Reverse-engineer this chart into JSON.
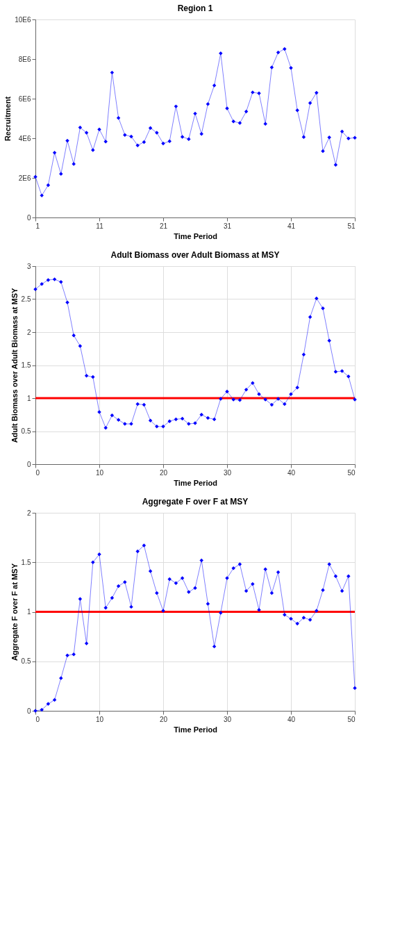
{
  "chart_data": [
    {
      "type": "line",
      "title": "Region 1",
      "xlabel": "Time Period",
      "ylabel": "Recruitment",
      "x": [
        1,
        2,
        3,
        4,
        5,
        6,
        7,
        8,
        9,
        10,
        11,
        12,
        13,
        14,
        15,
        16,
        17,
        18,
        19,
        20,
        21,
        22,
        23,
        24,
        25,
        26,
        27,
        28,
        29,
        30,
        31,
        32,
        33,
        34,
        35,
        36,
        37,
        38,
        39,
        40,
        41,
        42,
        43,
        44,
        45,
        46,
        47,
        48,
        49,
        50,
        51
      ],
      "series": [
        {
          "color": "#0000ff",
          "values": [
            2050000,
            1110000,
            1630000,
            3270000,
            2200000,
            3880000,
            2700000,
            4540000,
            4280000,
            3400000,
            4450000,
            3830000,
            7320000,
            5030000,
            4170000,
            4090000,
            3640000,
            3810000,
            4520000,
            4280000,
            3740000,
            3850000,
            5610000,
            4070000,
            3960000,
            5250000,
            4220000,
            5730000,
            6670000,
            8290000,
            5510000,
            4850000,
            4770000,
            5350000,
            6320000,
            6270000,
            4730000,
            7580000,
            8330000,
            8510000,
            7550000,
            5410000,
            4060000,
            5780000,
            6300000,
            3350000,
            4040000,
            2660000,
            4340000,
            3990000,
            4030000
          ]
        }
      ],
      "xlim": [
        1,
        51
      ],
      "xticks": [
        1,
        11,
        21,
        31,
        41,
        51
      ],
      "ylim": [
        0,
        10000000
      ],
      "yticks": [
        0,
        {
          "value": 2000000,
          "label": "2E6"
        },
        {
          "value": 4000000,
          "label": "4E6"
        },
        {
          "value": 6000000,
          "label": "6E6"
        },
        {
          "value": 8000000,
          "label": "8E6"
        },
        {
          "value": 10000000,
          "label": "10E6"
        }
      ],
      "grid": false,
      "marker": "diamond",
      "line_style": "solid"
    },
    {
      "type": "line",
      "title": "Adult Biomass over Adult Biomass at MSY",
      "xlabel": "Time Period",
      "ylabel": "Adult Biomass over Adult Biomass at MSY",
      "x": [
        0,
        1,
        2,
        3,
        4,
        5,
        6,
        7,
        8,
        9,
        10,
        11,
        12,
        13,
        14,
        15,
        16,
        17,
        18,
        19,
        20,
        21,
        22,
        23,
        24,
        25,
        26,
        27,
        28,
        29,
        30,
        31,
        32,
        33,
        34,
        35,
        36,
        37,
        38,
        39,
        40,
        41,
        42,
        43,
        44,
        45,
        46,
        47,
        48,
        49,
        50
      ],
      "series": [
        {
          "color": "#0000ff",
          "values": [
            2.65,
            2.73,
            2.79,
            2.8,
            2.76,
            2.45,
            1.95,
            1.79,
            1.34,
            1.32,
            0.79,
            0.55,
            0.74,
            0.67,
            0.61,
            0.61,
            0.91,
            0.9,
            0.66,
            0.57,
            0.57,
            0.65,
            0.68,
            0.69,
            0.61,
            0.62,
            0.75,
            0.7,
            0.68,
            0.99,
            1.1,
            0.98,
            0.97,
            1.13,
            1.23,
            1.06,
            0.98,
            0.9,
            0.99,
            0.91,
            1.06,
            1.16,
            1.66,
            2.23,
            2.51,
            2.36,
            1.87,
            1.4,
            1.41,
            1.33,
            0.98
          ]
        }
      ],
      "xlim": [
        0,
        50
      ],
      "xticks": [
        0,
        10,
        20,
        30,
        40,
        50
      ],
      "ylim": [
        0,
        3
      ],
      "yticks": [
        0,
        0.5,
        1,
        1.5,
        2,
        2.5,
        3
      ],
      "ref_lines": [
        {
          "axis": "y",
          "value": 1,
          "color": "#ff0000"
        }
      ],
      "grid": true,
      "marker": "diamond",
      "line_style": "solid"
    },
    {
      "type": "line",
      "title": "Aggregate F over F at MSY",
      "xlabel": "Time Period",
      "ylabel": "Aggregate F over F at MSY",
      "x": [
        0,
        1,
        2,
        3,
        4,
        5,
        6,
        7,
        8,
        9,
        10,
        11,
        12,
        13,
        14,
        15,
        16,
        17,
        18,
        19,
        20,
        21,
        22,
        23,
        24,
        25,
        26,
        27,
        28,
        29,
        30,
        31,
        32,
        33,
        34,
        35,
        36,
        37,
        38,
        39,
        40,
        41,
        42,
        43,
        44,
        45,
        46,
        47,
        48,
        49,
        50
      ],
      "series": [
        {
          "color": "#0000ff",
          "values": [
            0.0,
            0.01,
            0.07,
            0.11,
            0.33,
            0.56,
            0.57,
            1.13,
            0.68,
            1.5,
            1.58,
            1.04,
            1.14,
            1.26,
            1.3,
            1.05,
            1.61,
            1.67,
            1.41,
            1.19,
            1.01,
            1.33,
            1.29,
            1.34,
            1.2,
            1.24,
            1.52,
            1.08,
            0.65,
            0.99,
            1.34,
            1.44,
            1.48,
            1.21,
            1.28,
            1.02,
            1.43,
            1.19,
            1.4,
            0.97,
            0.93,
            0.88,
            0.94,
            0.92,
            1.01,
            1.22,
            1.48,
            1.36,
            1.21,
            1.36,
            0.23
          ]
        }
      ],
      "xlim": [
        0,
        50
      ],
      "xticks": [
        0,
        10,
        20,
        30,
        40,
        50
      ],
      "ylim": [
        0,
        2
      ],
      "yticks": [
        0,
        0.5,
        1,
        1.5,
        2
      ],
      "ref_lines": [
        {
          "axis": "y",
          "value": 1,
          "color": "#ff0000"
        }
      ],
      "grid": true,
      "marker": "diamond",
      "line_style": "solid"
    }
  ]
}
